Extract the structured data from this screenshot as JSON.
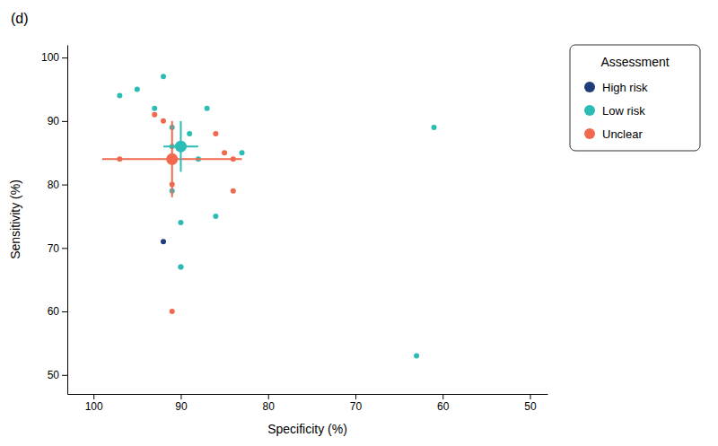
{
  "chart_data": {
    "type": "scatter",
    "title": "(d)",
    "x_label": "Specificity (%)",
    "y_label": "Sensitivity (%)",
    "xlim": [
      103,
      48
    ],
    "ylim": [
      47,
      102
    ],
    "xticks": [
      100,
      90,
      80,
      70,
      60,
      50
    ],
    "yticks": [
      50,
      60,
      70,
      80,
      90,
      100
    ],
    "grid": false,
    "legend": "right",
    "legend_title": "Assessment",
    "series": [
      {
        "name": "High risk",
        "color": "#1f3d7a",
        "x": [
          92
        ],
        "values": [
          71
        ]
      },
      {
        "name": "Low risk",
        "color": "#2abcb5",
        "x": [
          97,
          95,
          93,
          92,
          91,
          91,
          91,
          90,
          90,
          90,
          89,
          88,
          87,
          86,
          83,
          63,
          61
        ],
        "values": [
          94,
          95,
          92,
          97,
          89,
          86,
          79,
          74,
          67,
          67,
          88,
          84,
          92,
          75,
          85,
          53,
          89
        ],
        "summary": {
          "x": 90,
          "y": 86,
          "x_error": [
            2,
            2
          ],
          "y_error": [
            4,
            4
          ]
        }
      },
      {
        "name": "Unclear",
        "color": "#f0694e",
        "x": [
          97,
          93,
          92,
          91,
          91,
          86,
          85,
          84,
          84
        ],
        "values": [
          84,
          91,
          90,
          80,
          60,
          88,
          85,
          84,
          79
        ],
        "summary": {
          "x": 91,
          "y": 84,
          "x_error": [
            8,
            8
          ],
          "y_error": [
            6,
            6
          ]
        }
      }
    ]
  }
}
